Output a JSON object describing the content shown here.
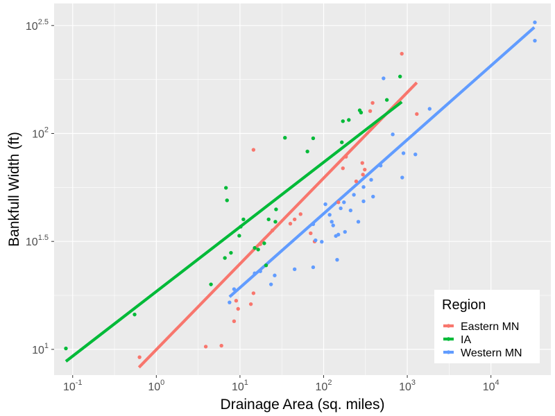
{
  "chart_data": {
    "type": "scatter",
    "title": "",
    "xlabel": "Drainage Area (sq. miles)",
    "ylabel": "Bankfull Width (ft)",
    "x_scale": "log10",
    "y_scale": "log10",
    "xlim": [
      0.06,
      52000
    ],
    "ylim": [
      7.6,
      400
    ],
    "x_ticks": [
      {
        "value": 0.1,
        "base": "10",
        "exp": "-1"
      },
      {
        "value": 1,
        "base": "10",
        "exp": "0"
      },
      {
        "value": 10,
        "base": "10",
        "exp": "1"
      },
      {
        "value": 100,
        "base": "10",
        "exp": "2"
      },
      {
        "value": 1000,
        "base": "10",
        "exp": "3"
      },
      {
        "value": 10000,
        "base": "10",
        "exp": "4"
      }
    ],
    "y_ticks": [
      {
        "value": 10,
        "base": "10",
        "exp": "1"
      },
      {
        "value": 31.62,
        "base": "10",
        "exp": "1.5"
      },
      {
        "value": 100,
        "base": "10",
        "exp": "2"
      },
      {
        "value": 316.2,
        "base": "10",
        "exp": "2.5"
      }
    ],
    "grid": true,
    "legend": {
      "title": "Region",
      "position": "bottom-right"
    },
    "series": [
      {
        "name": "Eastern MN",
        "color": "#F8766D",
        "points": [
          [
            0.63,
            9.2
          ],
          [
            3.9,
            10.3
          ],
          [
            6.0,
            10.4
          ],
          [
            8.5,
            13.5
          ],
          [
            9.5,
            15.4
          ],
          [
            9.0,
            16.8
          ],
          [
            13.5,
            16.2
          ],
          [
            14.5,
            18.2
          ],
          [
            17.5,
            30.7
          ],
          [
            24.5,
            35.6
          ],
          [
            40.0,
            38.2
          ],
          [
            45.0,
            40.0
          ],
          [
            53.0,
            42.3
          ],
          [
            70.0,
            34.5
          ],
          [
            78.0,
            31.6
          ],
          [
            150.0,
            48.0
          ],
          [
            170.0,
            69.0
          ],
          [
            185.0,
            78.0
          ],
          [
            245.0,
            60.0
          ],
          [
            290.0,
            73.0
          ],
          [
            295.0,
            64.5
          ],
          [
            310.0,
            68.0
          ],
          [
            360.0,
            127.0
          ],
          [
            385.0,
            138.5
          ],
          [
            860.0,
            234.0
          ],
          [
            1300.0,
            123.0
          ],
          [
            14.5,
            84.0
          ]
        ],
        "trend": [
          [
            0.62,
            8.25
          ],
          [
            1300.0,
            172.0
          ]
        ]
      },
      {
        "name": "IA",
        "color": "#00BA38",
        "points": [
          [
            0.083,
            10.1
          ],
          [
            0.55,
            14.5
          ],
          [
            4.5,
            20.0
          ],
          [
            6.6,
            26.5
          ],
          [
            7.0,
            49.0
          ],
          [
            6.8,
            56.0
          ],
          [
            7.8,
            28.0
          ],
          [
            9.8,
            33.6
          ],
          [
            10.2,
            37.0
          ],
          [
            11.0,
            40.0
          ],
          [
            15.0,
            29.5
          ],
          [
            16.5,
            29.0
          ],
          [
            19.5,
            31.0
          ],
          [
            20.5,
            24.5
          ],
          [
            22.0,
            40.0
          ],
          [
            26.5,
            39.0
          ],
          [
            27.0,
            44.5
          ],
          [
            34.5,
            95.5
          ],
          [
            64.0,
            82.5
          ],
          [
            75.0,
            95.0
          ],
          [
            165.0,
            91.0
          ],
          [
            170.0,
            114.0
          ],
          [
            200.0,
            115.5
          ],
          [
            270.0,
            128.0
          ],
          [
            280.0,
            125.0
          ],
          [
            570.0,
            143.0
          ],
          [
            820.0,
            183.5
          ]
        ],
        "trend": [
          [
            0.083,
            8.8
          ],
          [
            860.0,
            140.0
          ]
        ]
      },
      {
        "name": "Western MN",
        "color": "#619CFF",
        "points": [
          [
            7.5,
            16.5
          ],
          [
            8.5,
            19.0
          ],
          [
            15.0,
            22.5
          ],
          [
            17.5,
            23.0
          ],
          [
            23.5,
            20.0
          ],
          [
            26.0,
            22.0
          ],
          [
            45.0,
            23.5
          ],
          [
            75.0,
            24.0
          ],
          [
            80.0,
            32.0
          ],
          [
            95.0,
            31.5
          ],
          [
            105.0,
            47.0
          ],
          [
            118.0,
            42.0
          ],
          [
            125.0,
            39.0
          ],
          [
            130.0,
            37.5
          ],
          [
            140.0,
            33.5
          ],
          [
            150.0,
            34.0
          ],
          [
            160.0,
            45.0
          ],
          [
            175.0,
            48.0
          ],
          [
            210.0,
            44.0
          ],
          [
            230.0,
            52.0
          ],
          [
            260.0,
            39.0
          ],
          [
            300.0,
            48.5
          ],
          [
            300.0,
            56.5
          ],
          [
            370.0,
            61.0
          ],
          [
            390.0,
            51.0
          ],
          [
            480.0,
            71.0
          ],
          [
            520.0,
            180.0
          ],
          [
            670.0,
            99.0
          ],
          [
            870.0,
            62.5
          ],
          [
            900.0,
            81.0
          ],
          [
            1250.0,
            80.0
          ],
          [
            1850.0,
            130.0
          ],
          [
            33500.0,
            327.0
          ],
          [
            33500.0,
            269.0
          ],
          [
            145.0,
            26.0
          ],
          [
            75.0,
            38.0
          ],
          [
            180.0,
            35.0
          ]
        ],
        "trend": [
          [
            7.5,
            17.5
          ],
          [
            33000.0,
            310.0
          ]
        ]
      }
    ]
  }
}
